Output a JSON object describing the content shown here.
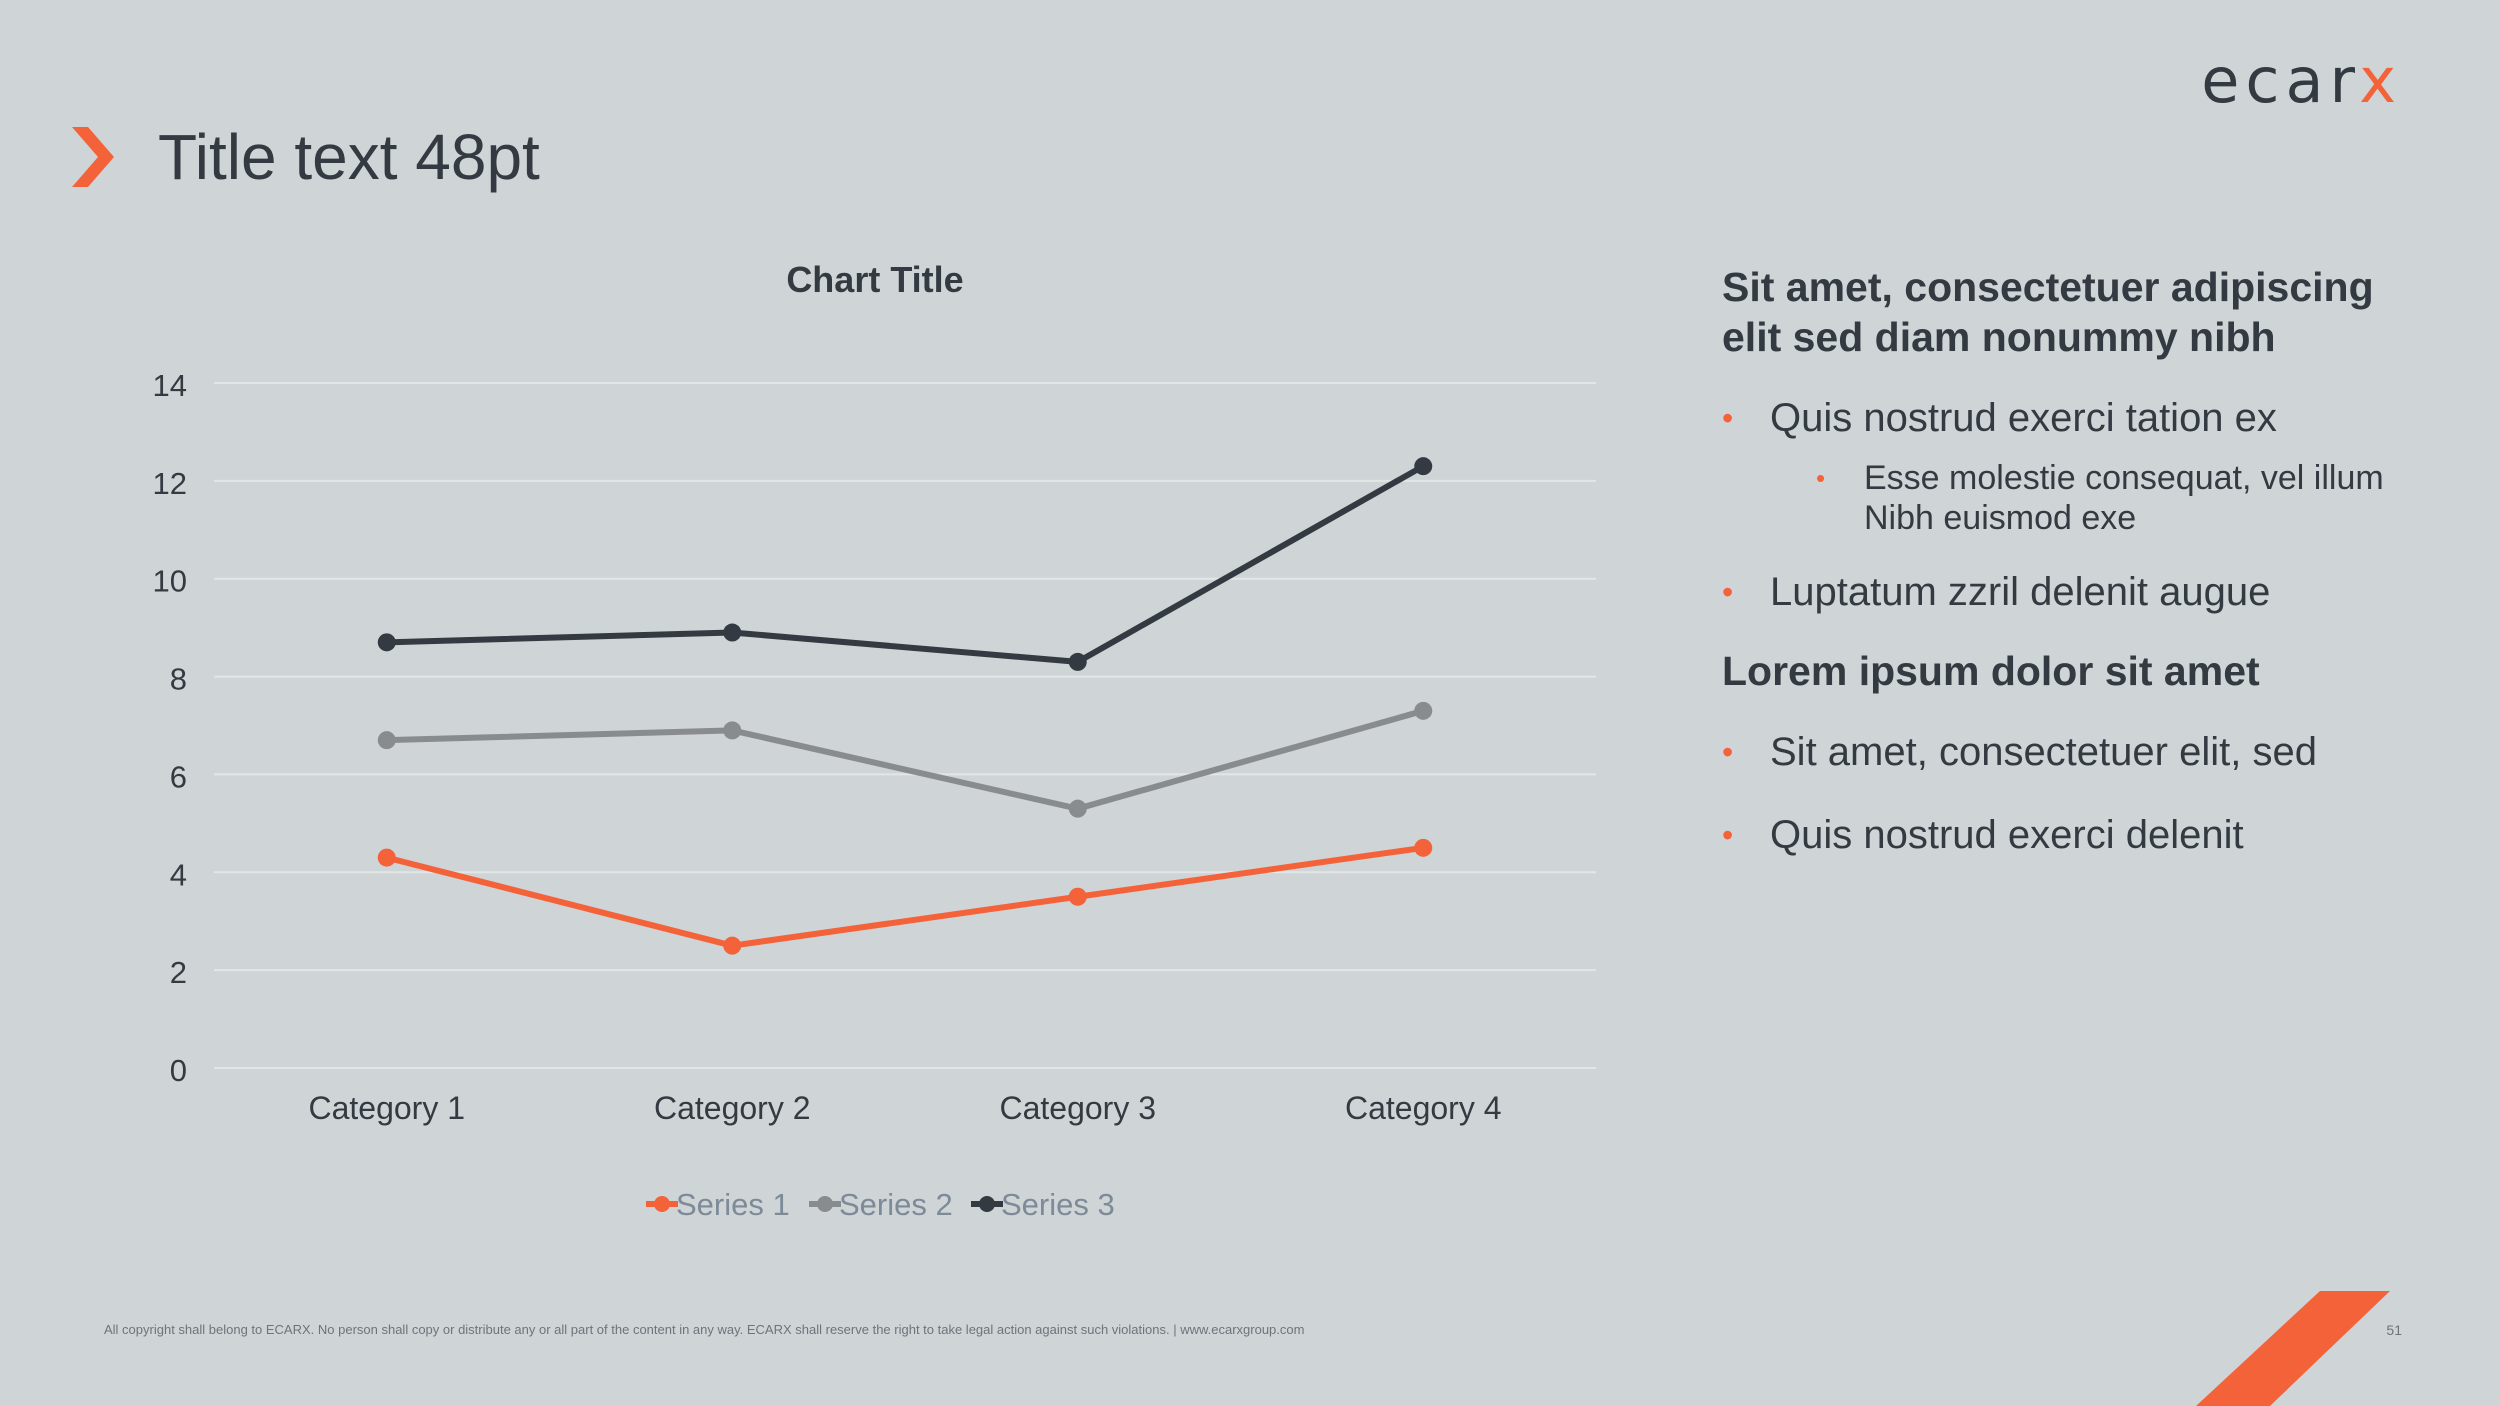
{
  "logo": {
    "text_main": "ecar",
    "text_accent": "x"
  },
  "title": "Title text 48pt",
  "colors": {
    "accent": "#f4623a",
    "dark": "#343a42",
    "grey": "#898c8f",
    "background": "#cfd4d6",
    "gridline": "#e2e6e7"
  },
  "chart_data": {
    "type": "line",
    "title": "Chart Title",
    "categories": [
      "Category 1",
      "Category 2",
      "Category 3",
      "Category 4"
    ],
    "series": [
      {
        "name": "Series 1",
        "color": "#f4623a",
        "values": [
          4.3,
          2.5,
          3.5,
          4.5
        ]
      },
      {
        "name": "Series 2",
        "color": "#898c8f",
        "values": [
          6.7,
          6.9,
          5.3,
          7.3
        ]
      },
      {
        "name": "Series 3",
        "color": "#343a42",
        "values": [
          8.7,
          8.9,
          8.3,
          12.3
        ]
      }
    ],
    "ylim": [
      0,
      14
    ],
    "yticks": [
      0,
      2,
      4,
      6,
      8,
      10,
      12,
      14
    ],
    "grid": true,
    "legend": "bottom"
  },
  "sidebar": {
    "heading1": "Sit amet, consectetuer adipiscing elit sed diam nonummy nibh",
    "bullet1": "Quis nostrud exerci tation ex",
    "subbullet1": "Esse molestie consequat, vel illum Nibh euismod exe",
    "bullet2": "Luptatum zzril delenit augue",
    "heading2": "Lorem ipsum dolor sit amet",
    "bullet3": "Sit amet, consectetuer elit, sed",
    "bullet4": "Quis nostrud exerci delenit"
  },
  "footer": {
    "copyright": "All copyright shall belong to ECARX.  No person shall copy or distribute any or all part of the content in any way.  ECARX shall reserve the right to take legal action against such violations. | www.ecarxgroup.com",
    "page_number": "51"
  }
}
